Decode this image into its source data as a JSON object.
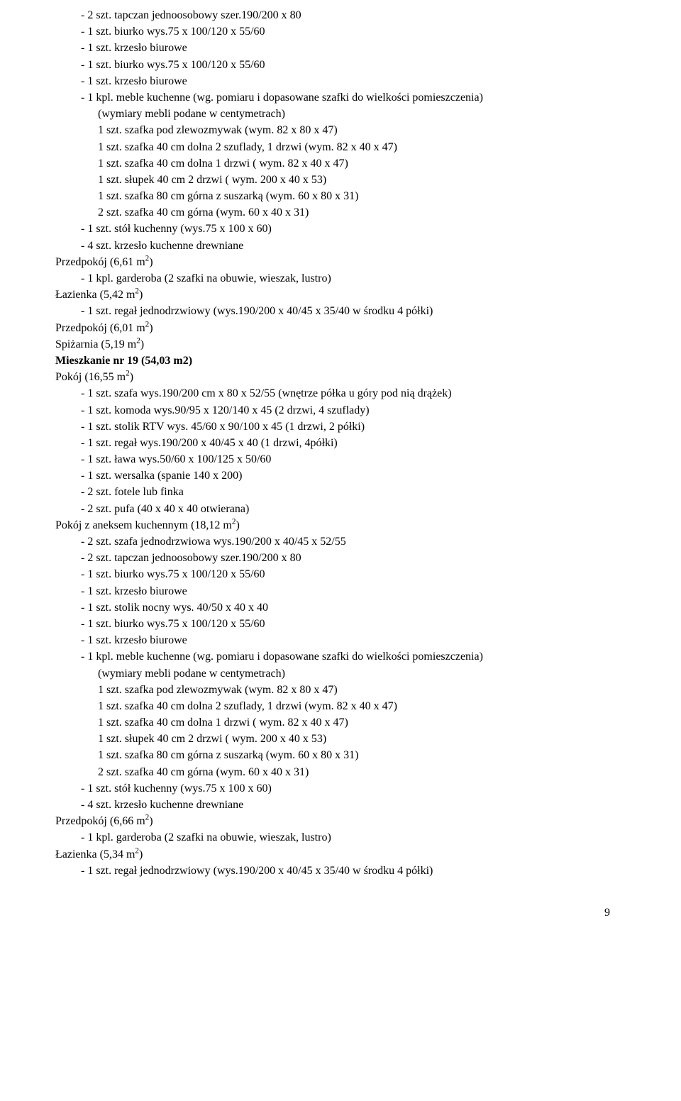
{
  "lines": [
    {
      "cls": "indent1",
      "text": "- 2 szt. tapczan jednoosobowy szer.190/200 x 80"
    },
    {
      "cls": "indent1",
      "text": "- 1 szt. biurko wys.75 x 100/120 x 55/60"
    },
    {
      "cls": "indent1",
      "text": "- 1 szt. krzesło biurowe"
    },
    {
      "cls": "indent1",
      "text": "- 1 szt. biurko wys.75 x 100/120 x 55/60"
    },
    {
      "cls": "indent1",
      "text": "- 1 szt. krzesło biurowe"
    },
    {
      "cls": "indent1",
      "text": "- 1 kpl. meble kuchenne (wg. pomiaru i dopasowane szafki do wielkości pomieszczenia)"
    },
    {
      "cls": "indent2",
      "text": "(wymiary mebli podane w centymetrach)"
    },
    {
      "cls": "indent2",
      "text": "1 szt. szafka pod zlewozmywak (wym. 82 x 80 x 47)"
    },
    {
      "cls": "indent2",
      "text": "1 szt. szafka 40 cm dolna 2 szuflady, 1 drzwi (wym. 82 x 40 x 47)"
    },
    {
      "cls": "indent2",
      "text": "1 szt. szafka 40 cm dolna 1 drzwi ( wym. 82 x 40 x 47)"
    },
    {
      "cls": "indent2",
      "text": "1 szt. słupek 40 cm 2 drzwi ( wym. 200 x 40 x 53)"
    },
    {
      "cls": "indent2",
      "text": "1 szt. szafka 80 cm górna z suszarką (wym. 60 x 80 x 31)"
    },
    {
      "cls": "indent2",
      "text": "2 szt. szafka 40 cm górna (wym. 60 x 40 x 31)"
    },
    {
      "cls": "indent1",
      "text": "- 1 szt. stół kuchenny (wys.75 x 100 x 60)"
    },
    {
      "cls": "indent1",
      "text": "- 4 szt. krzesło kuchenne drewniane"
    },
    {
      "cls": "",
      "text": "Przedpokój (6,61 m",
      "sup": "2",
      "after": ")"
    },
    {
      "cls": "indent1",
      "text": "- 1 kpl. garderoba (2 szafki na obuwie, wieszak, lustro)"
    },
    {
      "cls": "",
      "text": "Łazienka (5,42 m",
      "sup": "2",
      "after": ")"
    },
    {
      "cls": "indent1",
      "text": "- 1 szt. regał jednodrzwiowy (wys.190/200 x 40/45 x 35/40 w środku 4 półki)"
    },
    {
      "cls": "",
      "text": "Przedpokój (6,01 m",
      "sup": "2",
      "after": ")"
    },
    {
      "cls": "",
      "text": "Spiżarnia (5,19 m",
      "sup": "2",
      "after": ")"
    },
    {
      "cls": "bold",
      "text": "Mieszkanie nr 19 (54,03 m2)"
    },
    {
      "cls": "",
      "text": "Pokój (16,55 m",
      "sup": "2",
      "after": ")"
    },
    {
      "cls": "indent1",
      "text": "- 1 szt. szafa wys.190/200 cm x 80 x 52/55 (wnętrze półka u góry pod nią drążek)"
    },
    {
      "cls": "indent1",
      "text": "- 1 szt. komoda wys.90/95 x 120/140 x 45 (2 drzwi, 4 szuflady)"
    },
    {
      "cls": "indent1",
      "text": "- 1 szt. stolik RTV wys. 45/60 x 90/100 x 45 (1 drzwi, 2 półki)"
    },
    {
      "cls": "indent1",
      "text": "- 1 szt. regał wys.190/200 x 40/45 x 40 (1 drzwi, 4półki)"
    },
    {
      "cls": "indent1",
      "text": "- 1 szt. ława wys.50/60 x 100/125 x 50/60"
    },
    {
      "cls": "indent1",
      "text": "- 1 szt. wersalka (spanie 140 x 200)"
    },
    {
      "cls": "indent1",
      "text": "- 2 szt. fotele lub finka"
    },
    {
      "cls": "indent1",
      "text": "- 2 szt. pufa (40 x 40 x 40 otwierana)"
    },
    {
      "cls": "",
      "text": "Pokój z aneksem kuchennym (18,12 m",
      "sup": "2",
      "after": ")"
    },
    {
      "cls": "indent1",
      "text": "- 2 szt. szafa jednodrzwiowa wys.190/200 x 40/45 x 52/55"
    },
    {
      "cls": "indent1",
      "text": "- 2 szt. tapczan jednoosobowy szer.190/200 x 80"
    },
    {
      "cls": "indent1",
      "text": "- 1 szt. biurko wys.75 x 100/120 x 55/60"
    },
    {
      "cls": "indent1",
      "text": "- 1 szt. krzesło biurowe"
    },
    {
      "cls": "indent1",
      "text": "- 1 szt. stolik nocny wys. 40/50 x 40 x 40"
    },
    {
      "cls": "indent1",
      "text": "- 1 szt. biurko wys.75 x 100/120 x 55/60"
    },
    {
      "cls": "indent1",
      "text": "- 1 szt. krzesło biurowe"
    },
    {
      "cls": "indent1",
      "text": "- 1 kpl. meble kuchenne (wg. pomiaru i dopasowane szafki do wielkości pomieszczenia)"
    },
    {
      "cls": "indent2",
      "text": "(wymiary mebli podane w centymetrach)"
    },
    {
      "cls": "indent2",
      "text": "1 szt. szafka pod zlewozmywak (wym. 82 x 80 x 47)"
    },
    {
      "cls": "indent2",
      "text": "1 szt. szafka 40 cm dolna 2 szuflady, 1 drzwi (wym. 82 x 40 x 47)"
    },
    {
      "cls": "indent2",
      "text": "1 szt. szafka 40 cm dolna 1 drzwi ( wym. 82 x 40 x 47)"
    },
    {
      "cls": "indent2",
      "text": "1 szt. słupek 40 cm 2 drzwi ( wym. 200 x 40 x 53)"
    },
    {
      "cls": "indent2",
      "text": "1 szt. szafka 80 cm górna z suszarką (wym. 60 x 80 x 31)"
    },
    {
      "cls": "indent2",
      "text": "2 szt. szafka 40 cm górna (wym. 60 x 40 x 31)"
    },
    {
      "cls": "indent1",
      "text": "- 1 szt. stół kuchenny (wys.75 x 100 x 60)"
    },
    {
      "cls": "indent1",
      "text": "- 4 szt. krzesło kuchenne drewniane"
    },
    {
      "cls": "",
      "text": "Przedpokój (6,66 m",
      "sup": "2",
      "after": ")"
    },
    {
      "cls": "indent1",
      "text": "- 1 kpl. garderoba (2 szafki na obuwie, wieszak, lustro)"
    },
    {
      "cls": "",
      "text": "Łazienka (5,34 m",
      "sup": "2",
      "after": ")"
    },
    {
      "cls": "indent1",
      "text": "- 1 szt. regał jednodrzwiowy (wys.190/200 x 40/45 x 35/40 w środku 4 półki)"
    }
  ],
  "pageNumber": "9"
}
